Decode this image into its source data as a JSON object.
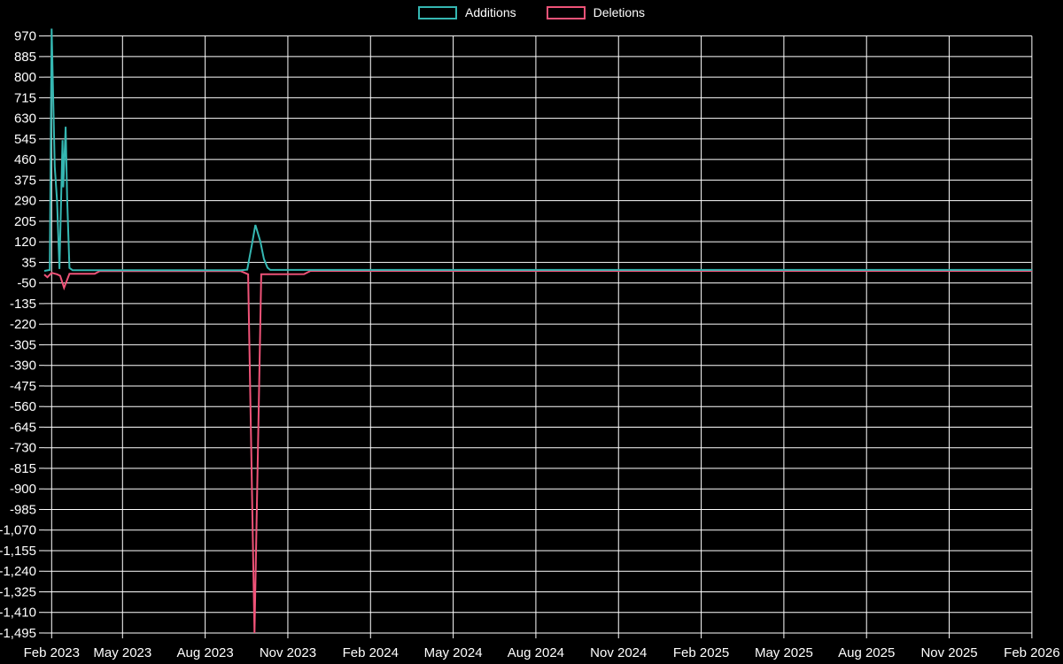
{
  "chart_data": {
    "type": "line",
    "title": "",
    "xlabel": "",
    "ylabel": "",
    "background_color": "#000000",
    "grid": true,
    "grid_color": "#ffffff",
    "text_color": "#ffffff",
    "legend_position": "top",
    "legend": [
      {
        "name": "Additions",
        "color": "#35b7b2"
      },
      {
        "name": "Deletions",
        "color": "#ef5378"
      }
    ],
    "x_ticks": [
      "Feb 2023",
      "May 2023",
      "Aug 2023",
      "Nov 2023",
      "Feb 2024",
      "May 2024",
      "Aug 2024",
      "Nov 2024",
      "Feb 2025",
      "May 2025",
      "Aug 2025",
      "Nov 2025",
      "Feb 2026"
    ],
    "y_ticks": [
      970,
      885,
      800,
      715,
      630,
      545,
      460,
      375,
      290,
      205,
      120,
      35,
      -50,
      -135,
      -220,
      -305,
      -390,
      -475,
      -560,
      -645,
      -730,
      -815,
      -900,
      -985,
      -1070,
      -1155,
      -1240,
      -1325,
      -1410,
      -1495
    ],
    "y_tick_step": 85,
    "ylim": [
      -1495,
      1000
    ],
    "xlim_dates": [
      "2023-01-22",
      "2026-02-01"
    ],
    "series": [
      {
        "name": "Additions",
        "color": "#35b7b2",
        "points": [
          [
            "2023-01-22",
            0
          ],
          [
            "2023-01-29",
            4
          ],
          [
            "2023-02-01",
            1000
          ],
          [
            "2023-02-05",
            430
          ],
          [
            "2023-02-08",
            290
          ],
          [
            "2023-02-11",
            8
          ],
          [
            "2023-02-15",
            540
          ],
          [
            "2023-02-16",
            345
          ],
          [
            "2023-02-19",
            595
          ],
          [
            "2023-02-21",
            300
          ],
          [
            "2023-02-24",
            12
          ],
          [
            "2023-02-28",
            3
          ],
          [
            "2023-09-10",
            3
          ],
          [
            "2023-09-17",
            5
          ],
          [
            "2023-09-22",
            105
          ],
          [
            "2023-09-26",
            190
          ],
          [
            "2023-10-01",
            123
          ],
          [
            "2023-10-05",
            50
          ],
          [
            "2023-10-09",
            13
          ],
          [
            "2023-10-12",
            4
          ],
          [
            "2026-02-01",
            4
          ]
        ]
      },
      {
        "name": "Deletions",
        "color": "#ef5378",
        "points": [
          [
            "2023-01-22",
            -15
          ],
          [
            "2023-01-26",
            -26
          ],
          [
            "2023-02-01",
            -8
          ],
          [
            "2023-02-08",
            -14
          ],
          [
            "2023-02-12",
            -20
          ],
          [
            "2023-02-17",
            -70
          ],
          [
            "2023-02-24",
            -12
          ],
          [
            "2023-03-26",
            -12
          ],
          [
            "2023-04-02",
            -1
          ],
          [
            "2023-09-10",
            -1
          ],
          [
            "2023-09-18",
            -14
          ],
          [
            "2023-09-25",
            -1495
          ],
          [
            "2023-10-02",
            -14
          ],
          [
            "2023-11-19",
            -13
          ],
          [
            "2023-11-26",
            0
          ],
          [
            "2026-02-01",
            0
          ]
        ]
      }
    ]
  },
  "legend": {
    "additions_label": "Additions",
    "deletions_label": "Deletions"
  }
}
